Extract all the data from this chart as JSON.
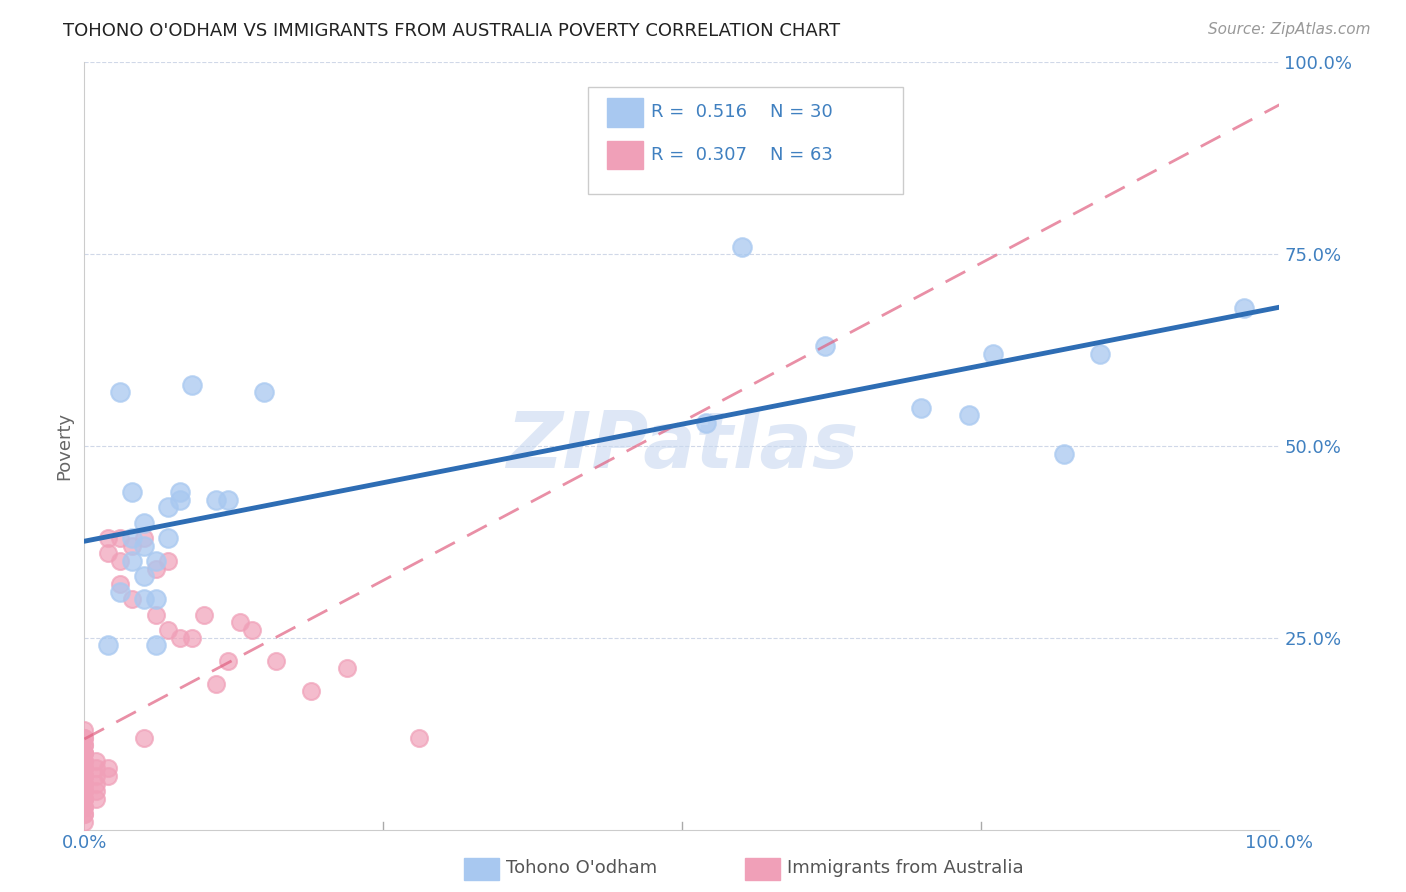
{
  "title": "TOHONO O'ODHAM VS IMMIGRANTS FROM AUSTRALIA POVERTY CORRELATION CHART",
  "source": "Source: ZipAtlas.com",
  "ylabel": "Poverty",
  "xlim": [
    0,
    1
  ],
  "ylim": [
    0,
    1
  ],
  "blue_R": 0.516,
  "blue_N": 30,
  "pink_R": 0.307,
  "pink_N": 63,
  "blue_color": "#A8C8F0",
  "pink_color": "#F0A0B8",
  "blue_line_color": "#2E6DB4",
  "pink_line_color": "#E06080",
  "watermark": "ZIPatlas",
  "tick_color": "#4080C0",
  "grid_color": "#D0D8E8",
  "blue_scatter_x": [
    0.02,
    0.03,
    0.04,
    0.04,
    0.05,
    0.05,
    0.05,
    0.05,
    0.06,
    0.06,
    0.07,
    0.07,
    0.08,
    0.08,
    0.09,
    0.11,
    0.12,
    0.15,
    0.52,
    0.55,
    0.62,
    0.7,
    0.74,
    0.76,
    0.82,
    0.85,
    0.97,
    0.03,
    0.04,
    0.06
  ],
  "blue_scatter_y": [
    0.24,
    0.31,
    0.35,
    0.38,
    0.3,
    0.33,
    0.37,
    0.4,
    0.3,
    0.35,
    0.38,
    0.42,
    0.43,
    0.44,
    0.58,
    0.43,
    0.43,
    0.57,
    0.53,
    0.76,
    0.63,
    0.55,
    0.54,
    0.62,
    0.49,
    0.62,
    0.68,
    0.57,
    0.44,
    0.24
  ],
  "pink_scatter_x": [
    0.0,
    0.0,
    0.0,
    0.0,
    0.0,
    0.0,
    0.0,
    0.0,
    0.0,
    0.0,
    0.0,
    0.0,
    0.0,
    0.0,
    0.0,
    0.0,
    0.0,
    0.0,
    0.0,
    0.0,
    0.0,
    0.0,
    0.0,
    0.0,
    0.0,
    0.0,
    0.0,
    0.0,
    0.0,
    0.0,
    0.0,
    0.01,
    0.01,
    0.01,
    0.01,
    0.01,
    0.01,
    0.02,
    0.02,
    0.02,
    0.02,
    0.03,
    0.03,
    0.03,
    0.04,
    0.04,
    0.05,
    0.05,
    0.06,
    0.06,
    0.07,
    0.07,
    0.08,
    0.09,
    0.1,
    0.11,
    0.12,
    0.13,
    0.14,
    0.16,
    0.19,
    0.22,
    0.28
  ],
  "pink_scatter_y": [
    0.01,
    0.02,
    0.02,
    0.03,
    0.03,
    0.04,
    0.04,
    0.04,
    0.05,
    0.05,
    0.05,
    0.06,
    0.06,
    0.06,
    0.07,
    0.07,
    0.07,
    0.07,
    0.08,
    0.08,
    0.08,
    0.09,
    0.09,
    0.1,
    0.1,
    0.1,
    0.11,
    0.11,
    0.12,
    0.12,
    0.13,
    0.04,
    0.05,
    0.06,
    0.07,
    0.08,
    0.09,
    0.07,
    0.08,
    0.36,
    0.38,
    0.32,
    0.35,
    0.38,
    0.3,
    0.37,
    0.12,
    0.38,
    0.28,
    0.34,
    0.26,
    0.35,
    0.25,
    0.25,
    0.28,
    0.19,
    0.22,
    0.27,
    0.26,
    0.22,
    0.18,
    0.21,
    0.12
  ]
}
